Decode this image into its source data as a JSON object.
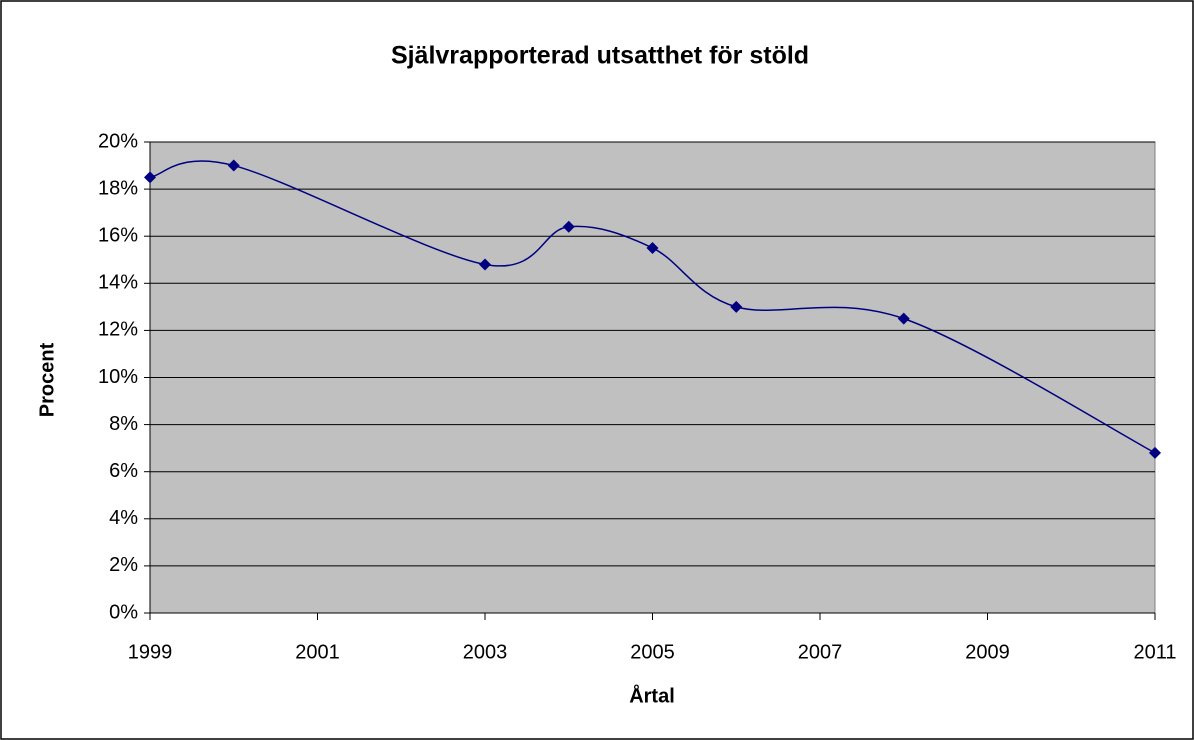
{
  "chart_data": {
    "type": "line",
    "title": "Självrapporterad utsatthet för stöld",
    "x_label": "Årtal",
    "y_label": "Procent",
    "x": [
      1999,
      2000,
      2003,
      2004,
      2005,
      2006,
      2008,
      2011
    ],
    "series": [
      {
        "name": "Utsatthet för stöld",
        "color": "#000080",
        "values": [
          18.5,
          19.0,
          14.8,
          16.4,
          15.5,
          13.0,
          12.5,
          6.8
        ]
      }
    ],
    "xlim": [
      1999,
      2011
    ],
    "xticks": [
      1999,
      2001,
      2003,
      2005,
      2007,
      2009,
      2011
    ],
    "ylim": [
      0,
      20
    ],
    "yticks": [
      {
        "value": 0,
        "label": "0%"
      },
      {
        "value": 2,
        "label": "2%"
      },
      {
        "value": 4,
        "label": "4%"
      },
      {
        "value": 6,
        "label": "6%"
      },
      {
        "value": 8,
        "label": "8%"
      },
      {
        "value": 10,
        "label": "10%"
      },
      {
        "value": 12,
        "label": "12%"
      },
      {
        "value": 14,
        "label": "14%"
      },
      {
        "value": 16,
        "label": "16%"
      },
      {
        "value": 18,
        "label": "18%"
      },
      {
        "value": 20,
        "label": "20%"
      }
    ],
    "grid": true,
    "smooth": true
  }
}
